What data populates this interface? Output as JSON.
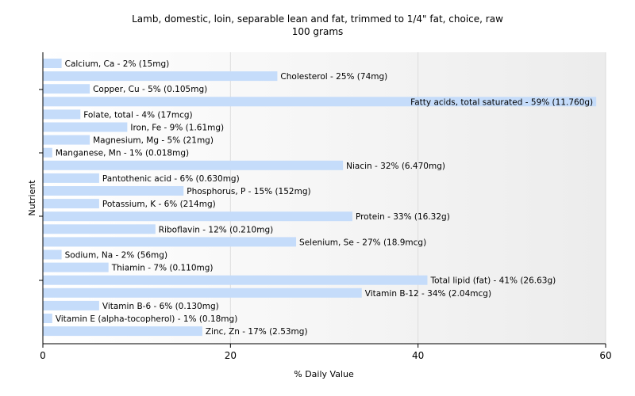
{
  "chart_data": {
    "type": "bar",
    "orientation": "horizontal",
    "title": "Lamb, domestic, loin, separable lean and fat, trimmed to 1/4\" fat, choice, raw",
    "subtitle": "100 grams",
    "xlabel": "% Daily Value",
    "ylabel": "Nutrient",
    "xlim": [
      0,
      60
    ],
    "xticks": [
      0,
      20,
      40,
      60
    ],
    "grid": true,
    "bar_color": "#c5dcfa",
    "categories": [
      "Calcium, Ca",
      "Cholesterol",
      "Copper, Cu",
      "Fatty acids, total saturated",
      "Folate, total",
      "Iron, Fe",
      "Magnesium, Mg",
      "Manganese, Mn",
      "Niacin",
      "Pantothenic acid",
      "Phosphorus, P",
      "Potassium, K",
      "Protein",
      "Riboflavin",
      "Selenium, Se",
      "Sodium, Na",
      "Thiamin",
      "Total lipid (fat)",
      "Vitamin B-12",
      "Vitamin B-6",
      "Vitamin E (alpha-tocopherol)",
      "Zinc, Zn"
    ],
    "values": [
      2,
      25,
      5,
      59,
      4,
      9,
      5,
      1,
      32,
      6,
      15,
      6,
      33,
      12,
      27,
      2,
      7,
      41,
      34,
      6,
      1,
      17
    ],
    "labels": [
      "Calcium, Ca - 2% (15mg)",
      "Cholesterol - 25% (74mg)",
      "Copper, Cu - 5% (0.105mg)",
      "Fatty acids, total saturated - 59% (11.760g)",
      "Folate, total - 4% (17mcg)",
      "Iron, Fe - 9% (1.61mg)",
      "Magnesium, Mg - 5% (21mg)",
      "Manganese, Mn - 1% (0.018mg)",
      "Niacin - 32% (6.470mg)",
      "Pantothenic acid - 6% (0.630mg)",
      "Phosphorus, P - 15% (152mg)",
      "Potassium, K - 6% (214mg)",
      "Protein - 33% (16.32g)",
      "Riboflavin - 12% (0.210mg)",
      "Selenium, Se - 27% (18.9mcg)",
      "Sodium, Na - 2% (56mg)",
      "Thiamin - 7% (0.110mg)",
      "Total lipid (fat) - 41% (26.63g)",
      "Vitamin B-12 - 34% (2.04mcg)",
      "Vitamin B-6 - 6% (0.130mg)",
      "Vitamin E (alpha-tocopherol) - 1% (0.18mg)",
      "Zinc, Zn - 17% (2.53mg)"
    ]
  }
}
